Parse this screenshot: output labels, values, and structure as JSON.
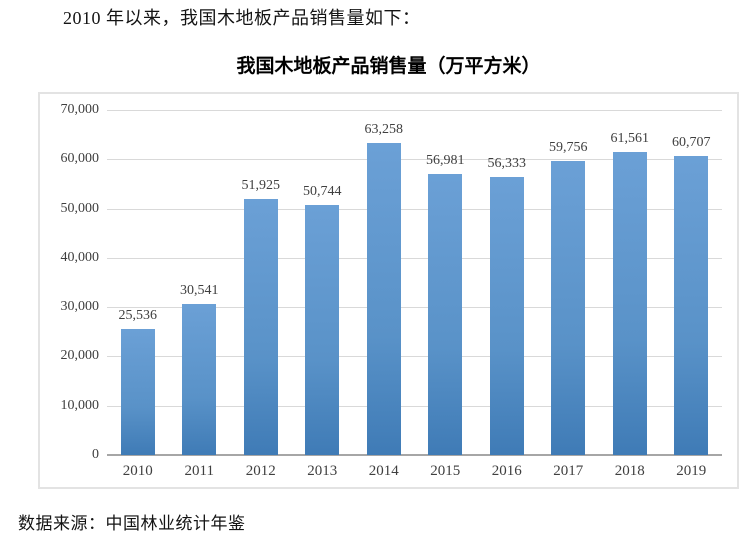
{
  "intro_text": "2010 年以来，我国木地板产品销售量如下：",
  "source_text": "数据来源：中国林业统计年鉴",
  "chart_data": {
    "type": "bar",
    "title": "我国木地板产品销售量（万平方米）",
    "categories": [
      "2010",
      "2011",
      "2012",
      "2013",
      "2014",
      "2015",
      "2016",
      "2017",
      "2018",
      "2019"
    ],
    "values": [
      25536,
      30541,
      51925,
      50744,
      63258,
      56981,
      56333,
      59756,
      61561,
      60707
    ],
    "value_labels": [
      "25,536",
      "30,541",
      "51,925",
      "50,744",
      "63,258",
      "56,981",
      "56,333",
      "59,756",
      "61,561",
      "60,707"
    ],
    "xlabel": "",
    "ylabel": "",
    "ylim": [
      0,
      70000
    ],
    "ytick_step": 10000,
    "ytick_labels": [
      "0",
      "10,000",
      "20,000",
      "30,000",
      "40,000",
      "50,000",
      "60,000",
      "70,000"
    ],
    "grid": true,
    "legend": "none",
    "colors": {
      "bar_top": "#6ba0d6",
      "bar_mid": "#5992c8",
      "bar_bottom": "#3f7bb6",
      "gridline": "#d9d9d9",
      "axis_line": "#a6a6a6",
      "frame_border": "#e3e3e3",
      "label_text": "#3f3f3f"
    }
  }
}
